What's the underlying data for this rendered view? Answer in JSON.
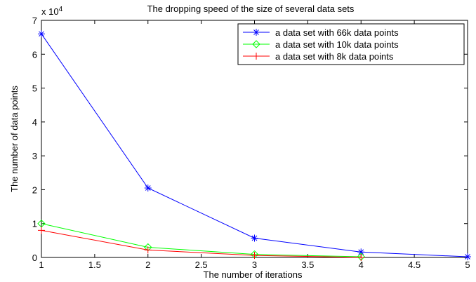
{
  "chart_data": {
    "type": "line",
    "title": "The dropping speed of the size of several data sets",
    "xlabel": "The number of iterations",
    "ylabel": "The number of data points",
    "y_exponent_label": "x 10",
    "y_exponent": "4",
    "xlim": [
      1,
      5
    ],
    "ylim": [
      0,
      7
    ],
    "x_ticks": [
      "1",
      "1.5",
      "2",
      "2.5",
      "3",
      "3.5",
      "4",
      "4.5",
      "5"
    ],
    "y_ticks": [
      "0",
      "1",
      "2",
      "3",
      "4",
      "5",
      "6",
      "7"
    ],
    "grid": false,
    "legend_position": "top-right",
    "series": [
      {
        "name": "a data set with 66k data points",
        "color": "#0000ff",
        "marker": "asterisk",
        "x": [
          1,
          2,
          3,
          4,
          5
        ],
        "y": [
          6.6,
          2.05,
          0.57,
          0.16,
          0.02
        ]
      },
      {
        "name": "a data set with 10k data points",
        "color": "#00ff00",
        "marker": "diamond",
        "x": [
          1,
          2,
          3,
          4
        ],
        "y": [
          1.0,
          0.3,
          0.09,
          0.02
        ]
      },
      {
        "name": "a data set with 8k data points",
        "color": "#ff0000",
        "marker": "plus",
        "x": [
          1,
          2,
          3,
          4
        ],
        "y": [
          0.8,
          0.22,
          0.06,
          0.0
        ]
      }
    ]
  }
}
